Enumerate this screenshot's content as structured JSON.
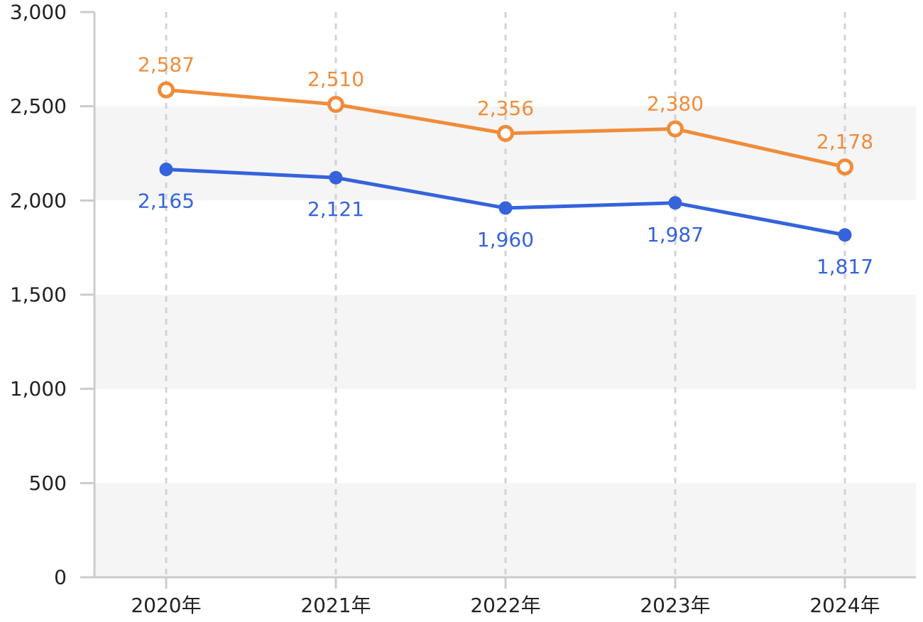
{
  "colors": {
    "orange": "#f08c3a",
    "blue": "#3563dc",
    "band": "#f5f5f5",
    "axis": "#cccccc",
    "text": "#222222"
  },
  "chart_data": {
    "type": "line",
    "categories": [
      "2020年",
      "2021年",
      "2022年",
      "2023年",
      "2024年"
    ],
    "ylim": [
      0,
      3000
    ],
    "yticks": [
      0,
      500,
      1000,
      1500,
      2000,
      2500,
      3000
    ],
    "ytick_labels": [
      "0",
      "500",
      "1,000",
      "1,500",
      "2,000",
      "2,500",
      "3,000"
    ],
    "grid": "alternating horizontal bands, dashed vertical lines at categories",
    "legend": "none",
    "series": [
      {
        "color": "#f08c3a",
        "marker": "hollow-circle",
        "label_position": "above",
        "values": [
          2587,
          2510,
          2356,
          2380,
          2178
        ],
        "labels": [
          "2,587",
          "2,510",
          "2,356",
          "2,380",
          "2,178"
        ]
      },
      {
        "color": "#3563dc",
        "marker": "filled-circle",
        "label_position": "below",
        "values": [
          2165,
          2121,
          1960,
          1987,
          1817
        ],
        "labels": [
          "2,165",
          "2,121",
          "1,960",
          "1,987",
          "1,817"
        ]
      }
    ]
  }
}
